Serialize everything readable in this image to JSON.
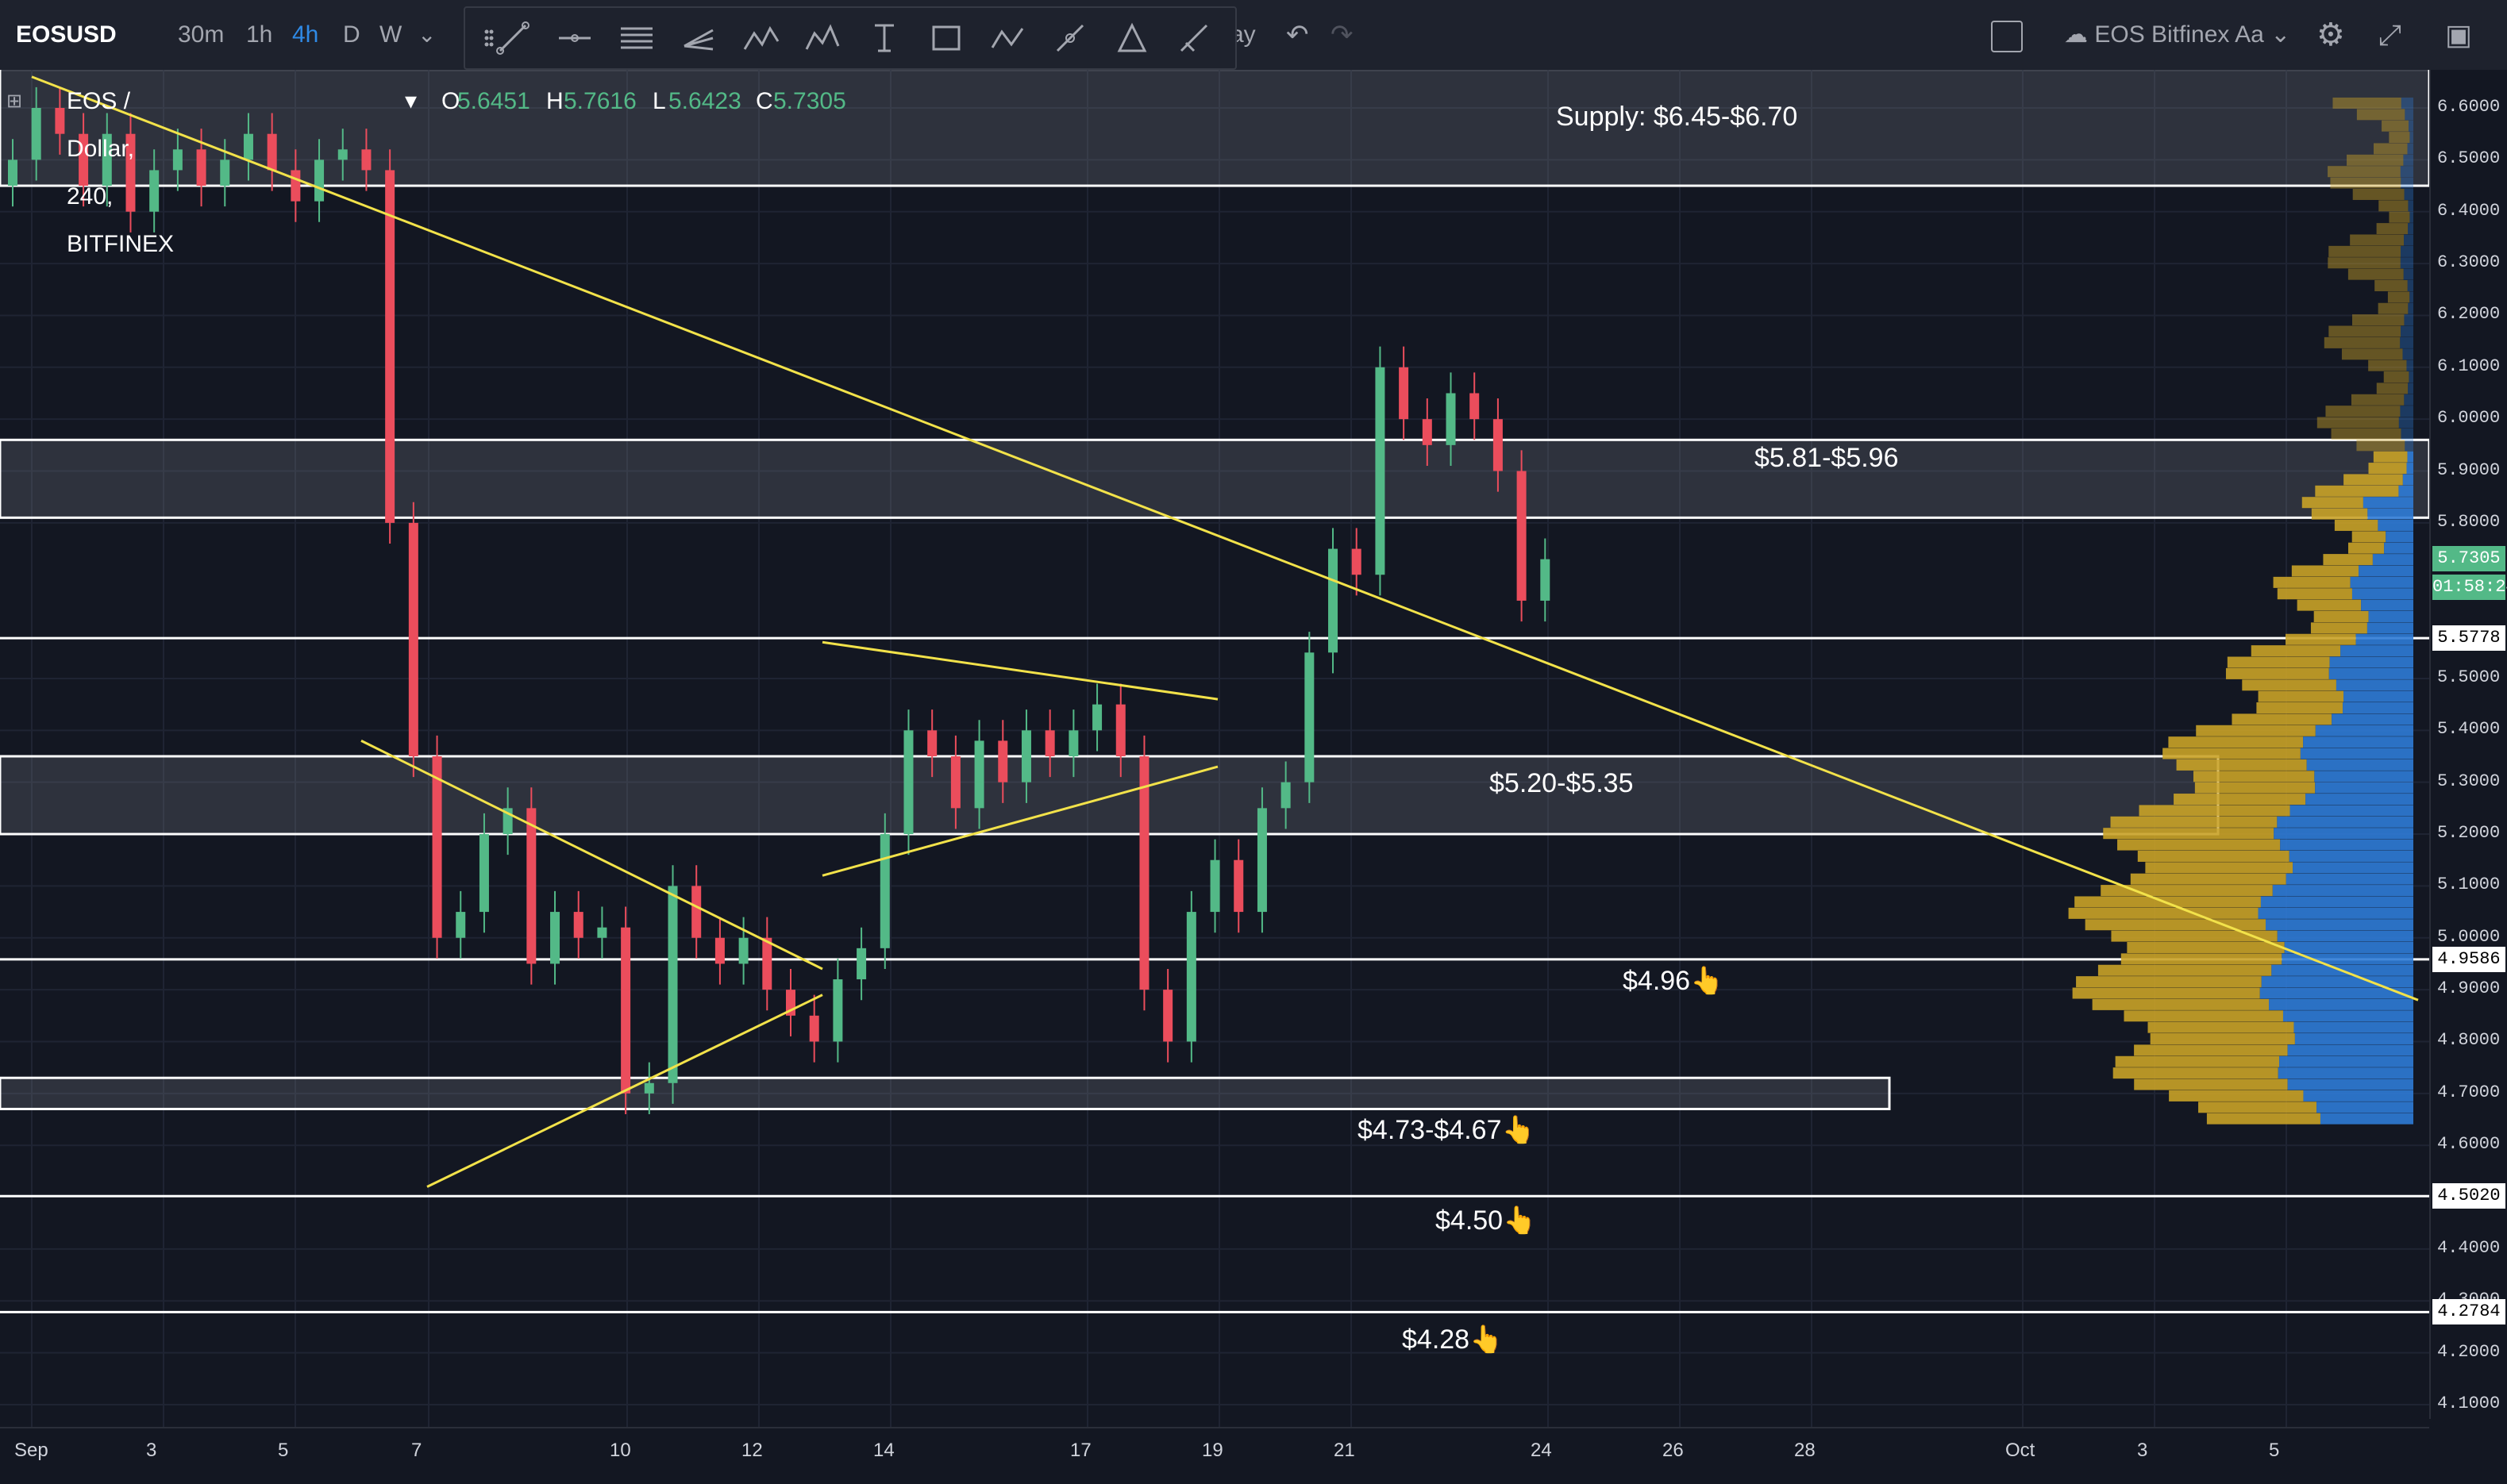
{
  "toolbar": {
    "symbol": "EOSUSD",
    "timeframes": [
      "30m",
      "1h",
      "4h",
      "D",
      "W"
    ],
    "active_timeframe": "4h",
    "chart_type_label": "ay",
    "layout_name": "EOS Bitfinex Aa"
  },
  "legend": {
    "title": "EOS / Dollar, 240, BITFINEX",
    "o_label": "O",
    "o_value": "5.6451",
    "h_label": "H",
    "h_value": "5.7616",
    "l_label": "L",
    "l_value": "5.6423",
    "c_label": "C",
    "c_value": "5.7305"
  },
  "colors": {
    "background": "#131722",
    "up": "#53b987",
    "down": "#eb4d5c",
    "trendline": "#f2e24a",
    "zone_line": "#ffffff",
    "volume_profile_gold": "#c9a227",
    "volume_profile_blue": "#2f7bd6"
  },
  "chart_data": {
    "type": "candlestick",
    "title": "EOS / Dollar, 240, BITFINEX",
    "ylim": [
      4.05,
      6.66
    ],
    "y_ticks": [
      "6.6000",
      "6.5000",
      "6.4000",
      "6.3000",
      "6.2000",
      "6.1000",
      "6.0000",
      "5.9000",
      "5.8000",
      "5.5000",
      "5.4000",
      "5.3000",
      "5.2000",
      "5.1000",
      "5.0000",
      "4.9000",
      "4.8000",
      "4.7000",
      "4.6000",
      "4.4000",
      "4.3000",
      "4.2000",
      "4.1000"
    ],
    "x_ticks": [
      "Sep",
      "3",
      "5",
      "7",
      "10",
      "12",
      "14",
      "17",
      "19",
      "21",
      "24",
      "26",
      "28",
      "Oct",
      "3",
      "5"
    ],
    "price_badges": [
      {
        "value": "5.7305",
        "color": "#53b987"
      },
      {
        "value": "01:58:24",
        "color": "#53b987"
      },
      {
        "value": "5.5778",
        "color": "#ffffff"
      },
      {
        "value": "4.9586",
        "color": "#ffffff"
      },
      {
        "value": "4.5020",
        "color": "#ffffff"
      },
      {
        "value": "4.2784",
        "color": "#ffffff"
      }
    ],
    "annotations": [
      {
        "text": "Supply: $6.45-$6.70"
      },
      {
        "text": "$5.81-$5.96"
      },
      {
        "text": "$5.20-$5.35"
      },
      {
        "text": "$4.96👆"
      },
      {
        "text": "$4.73-$4.67👆"
      },
      {
        "text": "$4.50👆"
      },
      {
        "text": "$4.28👆"
      }
    ],
    "zones": [
      {
        "low": 6.45,
        "high": 6.7
      },
      {
        "low": 5.81,
        "high": 5.96
      },
      {
        "low": 5.2,
        "high": 5.35
      },
      {
        "low": 4.67,
        "high": 4.73
      }
    ],
    "levels": [
      5.5778,
      4.9586,
      4.502,
      4.2784
    ],
    "candles_close_path": [
      6.5,
      6.6,
      6.55,
      6.45,
      6.55,
      6.4,
      6.48,
      6.52,
      6.45,
      6.5,
      6.55,
      6.48,
      6.42,
      6.5,
      6.52,
      6.48,
      5.8,
      5.35,
      5.0,
      5.05,
      5.2,
      5.25,
      4.95,
      5.05,
      5.0,
      5.02,
      4.7,
      4.72,
      5.1,
      5.0,
      4.95,
      5.0,
      4.9,
      4.85,
      4.8,
      4.92,
      4.98,
      5.2,
      5.4,
      5.35,
      5.25,
      5.38,
      5.3,
      5.4,
      5.35,
      5.4,
      5.45,
      5.35,
      4.9,
      4.8,
      5.05,
      5.15,
      5.05,
      5.25,
      5.3,
      5.55,
      5.75,
      5.7,
      6.1,
      6.0,
      5.95,
      6.05,
      6.0,
      5.9,
      5.65,
      5.73
    ],
    "trendlines": [
      {
        "from": [
          "Sep 1",
          6.66
        ],
        "to": [
          "Oct 7",
          4.88
        ]
      },
      {
        "from": [
          "Sep 6",
          5.38
        ],
        "to": [
          "Sep 13",
          4.94
        ]
      },
      {
        "from": [
          "Sep 7",
          4.52
        ],
        "to": [
          "Sep 13",
          4.89
        ]
      },
      {
        "from": [
          "Sep 13",
          5.57
        ],
        "to": [
          "Sep 19",
          5.46
        ]
      },
      {
        "from": [
          "Sep 13",
          5.12
        ],
        "to": [
          "Sep 19",
          5.33
        ]
      }
    ]
  }
}
